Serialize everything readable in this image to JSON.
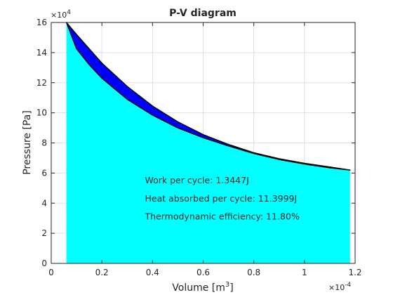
{
  "chart_data": {
    "type": "area",
    "title": "P-V diagram",
    "xlabel": "Volume [m",
    "xlabel_sup": "3",
    "xlabel_close": "]",
    "ylabel": "Pressure [Pa]",
    "x_multiplier": "×10",
    "x_multiplier_exp": "-4",
    "y_multiplier": "×10",
    "y_multiplier_exp": "4",
    "xlim": [
      0,
      1.2
    ],
    "ylim": [
      0,
      16
    ],
    "xticks": [
      0,
      0.2,
      0.4,
      0.6,
      0.8,
      1,
      1.2
    ],
    "xtick_labels": [
      "0",
      "0.2",
      "0.4",
      "0.6",
      "0.8",
      "1",
      "1.2"
    ],
    "yticks": [
      0,
      2,
      4,
      6,
      8,
      10,
      12,
      14,
      16
    ],
    "ytick_labels": [
      "0",
      "2",
      "4",
      "6",
      "8",
      "10",
      "12",
      "14",
      "16"
    ],
    "grid": true,
    "series": [
      {
        "x": [
          0.06,
          0.1,
          0.15,
          0.2,
          0.3,
          0.4,
          0.5,
          0.6,
          0.7,
          0.8,
          0.9,
          1.0,
          1.1,
          1.18
        ],
        "y": [
          16.0,
          15.2,
          14.25,
          13.3,
          11.75,
          10.45,
          9.4,
          8.55,
          7.9,
          7.35,
          6.95,
          6.65,
          6.4,
          6.2
        ]
      },
      {
        "x": [
          0.06,
          0.1,
          0.15,
          0.2,
          0.3,
          0.4,
          0.5,
          0.6,
          0.7,
          0.8,
          0.9,
          1.0,
          1.1,
          1.18
        ],
        "y": [
          16.0,
          14.25,
          13.2,
          12.3,
          10.9,
          9.85,
          9.0,
          8.35,
          7.8,
          7.3,
          6.9,
          6.6,
          6.35,
          6.2
        ]
      }
    ],
    "colors": {
      "fill": "#00ffff",
      "loop": "#0000ff",
      "loop_edge": "#000000",
      "axes": "#262626",
      "grid": "#dfdfdf"
    },
    "annotations": [
      {
        "text": "Work per cycle: 1.3447J",
        "x": 0.37,
        "y": 5.5
      },
      {
        "text": "Heat absorbed per cycle: 11.3999J",
        "x": 0.37,
        "y": 4.3
      },
      {
        "text": "Thermodynamic efficiency: 11.80%",
        "x": 0.37,
        "y": 3.1
      }
    ]
  }
}
